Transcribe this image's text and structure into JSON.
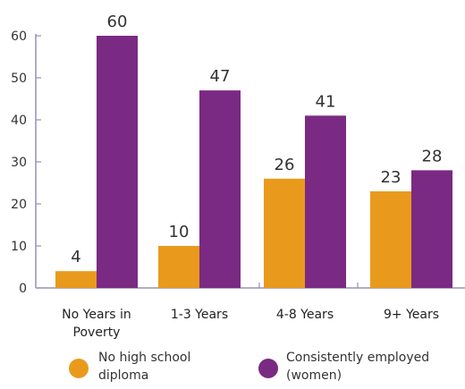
{
  "chart_data": {
    "type": "bar",
    "categories": [
      "No Years in Poverty",
      "1-3 Years",
      "4-8 Years",
      "9+ Years"
    ],
    "category_lines": [
      [
        "No Years in",
        "Poverty"
      ],
      [
        "1-3 Years"
      ],
      [
        "4-8 Years"
      ],
      [
        "9+ Years"
      ]
    ],
    "series": [
      {
        "name": "No high school diploma",
        "name_lines": [
          "No high school",
          "diploma"
        ],
        "values": [
          4,
          10,
          26,
          23
        ],
        "color": "#E99A1D"
      },
      {
        "name": "Consistently employed (women)",
        "name_lines": [
          "Consistently employed",
          "(women)"
        ],
        "values": [
          60,
          47,
          41,
          28
        ],
        "color": "#7A2A82"
      }
    ],
    "y_ticks": [
      0,
      10,
      20,
      30,
      40,
      50,
      60
    ],
    "ylim": [
      0,
      60
    ],
    "legend_position": "bottom",
    "title": "",
    "xlabel": "",
    "ylabel": ""
  }
}
